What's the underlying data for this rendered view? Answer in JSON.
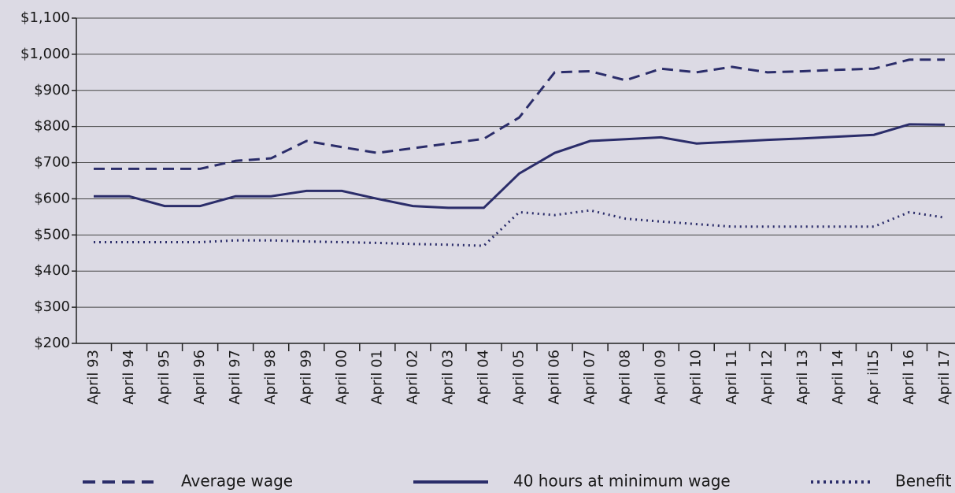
{
  "chart_data": {
    "type": "line",
    "categories": [
      "April 93",
      "April 94",
      "April 95",
      "April 96",
      "April 97",
      "April 98",
      "April 99",
      "April 00",
      "April 01",
      "April 02",
      "April 03",
      "April 04",
      "April 05",
      "April 06",
      "April 07",
      "April 08",
      "April 09",
      "April 10",
      "April 11",
      "April 12",
      "April 13",
      "April 14",
      "Apr il15",
      "April 16",
      "April 17"
    ],
    "series": [
      {
        "name": "Average wage",
        "color": "#2b2d6a",
        "dash": "dashed",
        "values": [
          683,
          683,
          683,
          683,
          705,
          712,
          760,
          743,
          727,
          740,
          753,
          766,
          825,
          950,
          953,
          928,
          960,
          950,
          965,
          950,
          953,
          957,
          960,
          985,
          985
        ]
      },
      {
        "name": "40 hours at minimum wage",
        "color": "#2b2d6a",
        "dash": "solid",
        "values": [
          607,
          607,
          580,
          580,
          607,
          607,
          622,
          622,
          600,
          580,
          575,
          575,
          670,
          727,
          760,
          765,
          770,
          753,
          758,
          763,
          767,
          772,
          777,
          806,
          805
        ]
      },
      {
        "name": "Benefit",
        "color": "#2b2d6a",
        "dash": "dotted",
        "values": [
          480,
          480,
          480,
          480,
          485,
          485,
          482,
          480,
          478,
          475,
          473,
          470,
          563,
          555,
          568,
          545,
          537,
          530,
          523,
          523,
          523,
          523,
          523,
          563,
          548
        ]
      }
    ],
    "ylim": [
      200,
      1100
    ],
    "yticks": [
      {
        "value": 200,
        "label": "$200"
      },
      {
        "value": 300,
        "label": "$300"
      },
      {
        "value": 400,
        "label": "$400"
      },
      {
        "value": 500,
        "label": "$500"
      },
      {
        "value": 600,
        "label": "$600"
      },
      {
        "value": 700,
        "label": "$700"
      },
      {
        "value": 800,
        "label": "$800"
      },
      {
        "value": 900,
        "label": "$900"
      },
      {
        "value": 1000,
        "label": "$1,000"
      },
      {
        "value": 1100,
        "label": "$1,100"
      }
    ],
    "grid": true
  }
}
